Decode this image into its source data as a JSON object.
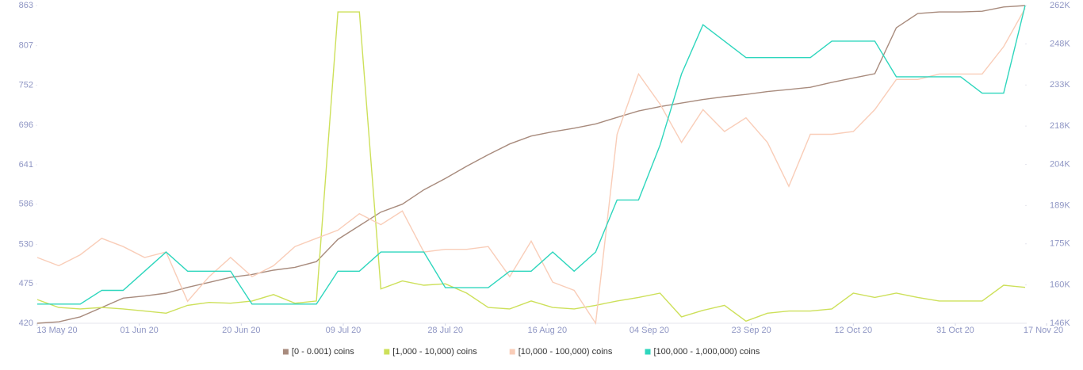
{
  "chart_data": {
    "type": "line",
    "x": [
      "2020-05-13",
      "2020-05-17",
      "2020-05-21",
      "2020-05-25",
      "2020-05-29",
      "2020-06-02",
      "2020-06-06",
      "2020-06-10",
      "2020-06-14",
      "2020-06-18",
      "2020-06-22",
      "2020-06-26",
      "2020-06-30",
      "2020-07-04",
      "2020-07-08",
      "2020-07-12",
      "2020-07-16",
      "2020-07-20",
      "2020-07-24",
      "2020-07-28",
      "2020-08-01",
      "2020-08-05",
      "2020-08-09",
      "2020-08-13",
      "2020-08-17",
      "2020-08-21",
      "2020-08-25",
      "2020-08-29",
      "2020-09-02",
      "2020-09-06",
      "2020-09-10",
      "2020-09-14",
      "2020-09-18",
      "2020-09-22",
      "2020-09-26",
      "2020-09-30",
      "2020-10-04",
      "2020-10-08",
      "2020-10-12",
      "2020-10-16",
      "2020-10-20",
      "2020-10-24",
      "2020-10-28",
      "2020-11-01",
      "2020-11-05",
      "2020-11-09",
      "2020-11-13"
    ],
    "xlim": [
      "2020-05-13",
      "2020-11-13"
    ],
    "xticks": [
      {
        "value": "2020-05-13",
        "label": "13 May 20"
      },
      {
        "value": "2020-06-01",
        "label": "01 Jun 20"
      },
      {
        "value": "2020-06-20",
        "label": "20 Jun 20"
      },
      {
        "value": "2020-07-09",
        "label": "09 Jul 20"
      },
      {
        "value": "2020-07-28",
        "label": "28 Jul 20"
      },
      {
        "value": "2020-08-16",
        "label": "16 Aug 20"
      },
      {
        "value": "2020-09-04",
        "label": "04 Sep 20"
      },
      {
        "value": "2020-09-23",
        "label": "23 Sep 20"
      },
      {
        "value": "2020-10-12",
        "label": "12 Oct 20"
      },
      {
        "value": "2020-10-31",
        "label": "31 Oct 20"
      },
      {
        "value": "2020-11-17",
        "label": "17 Nov 20"
      }
    ],
    "ylim": [
      420,
      863
    ],
    "yticks": [
      420,
      475,
      530,
      586,
      641,
      696,
      752,
      807,
      863
    ],
    "y2lim": [
      146000,
      262000
    ],
    "y2ticks": [
      {
        "value": 146000,
        "label": "146K"
      },
      {
        "value": 160000,
        "label": "160K"
      },
      {
        "value": 175000,
        "label": "175K"
      },
      {
        "value": 189000,
        "label": "189K"
      },
      {
        "value": 204000,
        "label": "204K"
      },
      {
        "value": 218000,
        "label": "218K"
      },
      {
        "value": 233000,
        "label": "233K"
      },
      {
        "value": 248000,
        "label": "248K"
      },
      {
        "value": 262000,
        "label": "262K"
      }
    ],
    "legend": "bottom",
    "series": [
      {
        "name": "[0 - 0.001) coins",
        "color": "#a88b7d",
        "axis": "y",
        "values": [
          420,
          422,
          429,
          442,
          455,
          458,
          462,
          470,
          477,
          484,
          488,
          494,
          498,
          506,
          537,
          556,
          575,
          586,
          606,
          622,
          639,
          655,
          670,
          681,
          687,
          692,
          698,
          707,
          716,
          722,
          727,
          732,
          736,
          739,
          743,
          746,
          749,
          756,
          762,
          768,
          832,
          852,
          854,
          854,
          855,
          861,
          863
        ]
      },
      {
        "name": "[1,000 - 10,000) coins",
        "color": "#cde05a",
        "axis": "y",
        "values": [
          453,
          442,
          440,
          442,
          440,
          437,
          434,
          445,
          449,
          448,
          451,
          460,
          448,
          451,
          854,
          854,
          468,
          479,
          473,
          475,
          462,
          442,
          440,
          451,
          442,
          440,
          445,
          451,
          456,
          462,
          429,
          438,
          445,
          423,
          434,
          437,
          437,
          440,
          462,
          456,
          462,
          456,
          451,
          451,
          451,
          473,
          470
        ]
      },
      {
        "name": "[10,000 - 100,000) coins",
        "color": "#f9cdb8",
        "axis": "y2",
        "values": [
          170000,
          167000,
          171000,
          177000,
          174000,
          170000,
          172000,
          154000,
          163000,
          170000,
          163000,
          167000,
          174000,
          177000,
          180000,
          186000,
          182000,
          187000,
          172000,
          173000,
          173000,
          174000,
          163000,
          176000,
          161000,
          158000,
          146000,
          215000,
          237000,
          226000,
          212000,
          224000,
          216000,
          221000,
          212000,
          196000,
          215000,
          215000,
          216000,
          224000,
          235000,
          235000,
          237000,
          237000,
          237000,
          247000,
          261000
        ]
      },
      {
        "name": "[100,000  - 1,000,000) coins",
        "color": "#2ed6bd",
        "axis": "y2",
        "values": [
          153000,
          153000,
          153000,
          158000,
          158000,
          165000,
          172000,
          165000,
          165000,
          165000,
          153000,
          153000,
          153000,
          153000,
          165000,
          165000,
          172000,
          172000,
          172000,
          159000,
          159000,
          159000,
          165000,
          165000,
          172000,
          165000,
          172000,
          191000,
          191000,
          211000,
          237000,
          255000,
          249000,
          243000,
          243000,
          243000,
          243000,
          249000,
          249000,
          249000,
          236000,
          236000,
          236000,
          236000,
          230000,
          230000,
          262000
        ]
      }
    ]
  }
}
